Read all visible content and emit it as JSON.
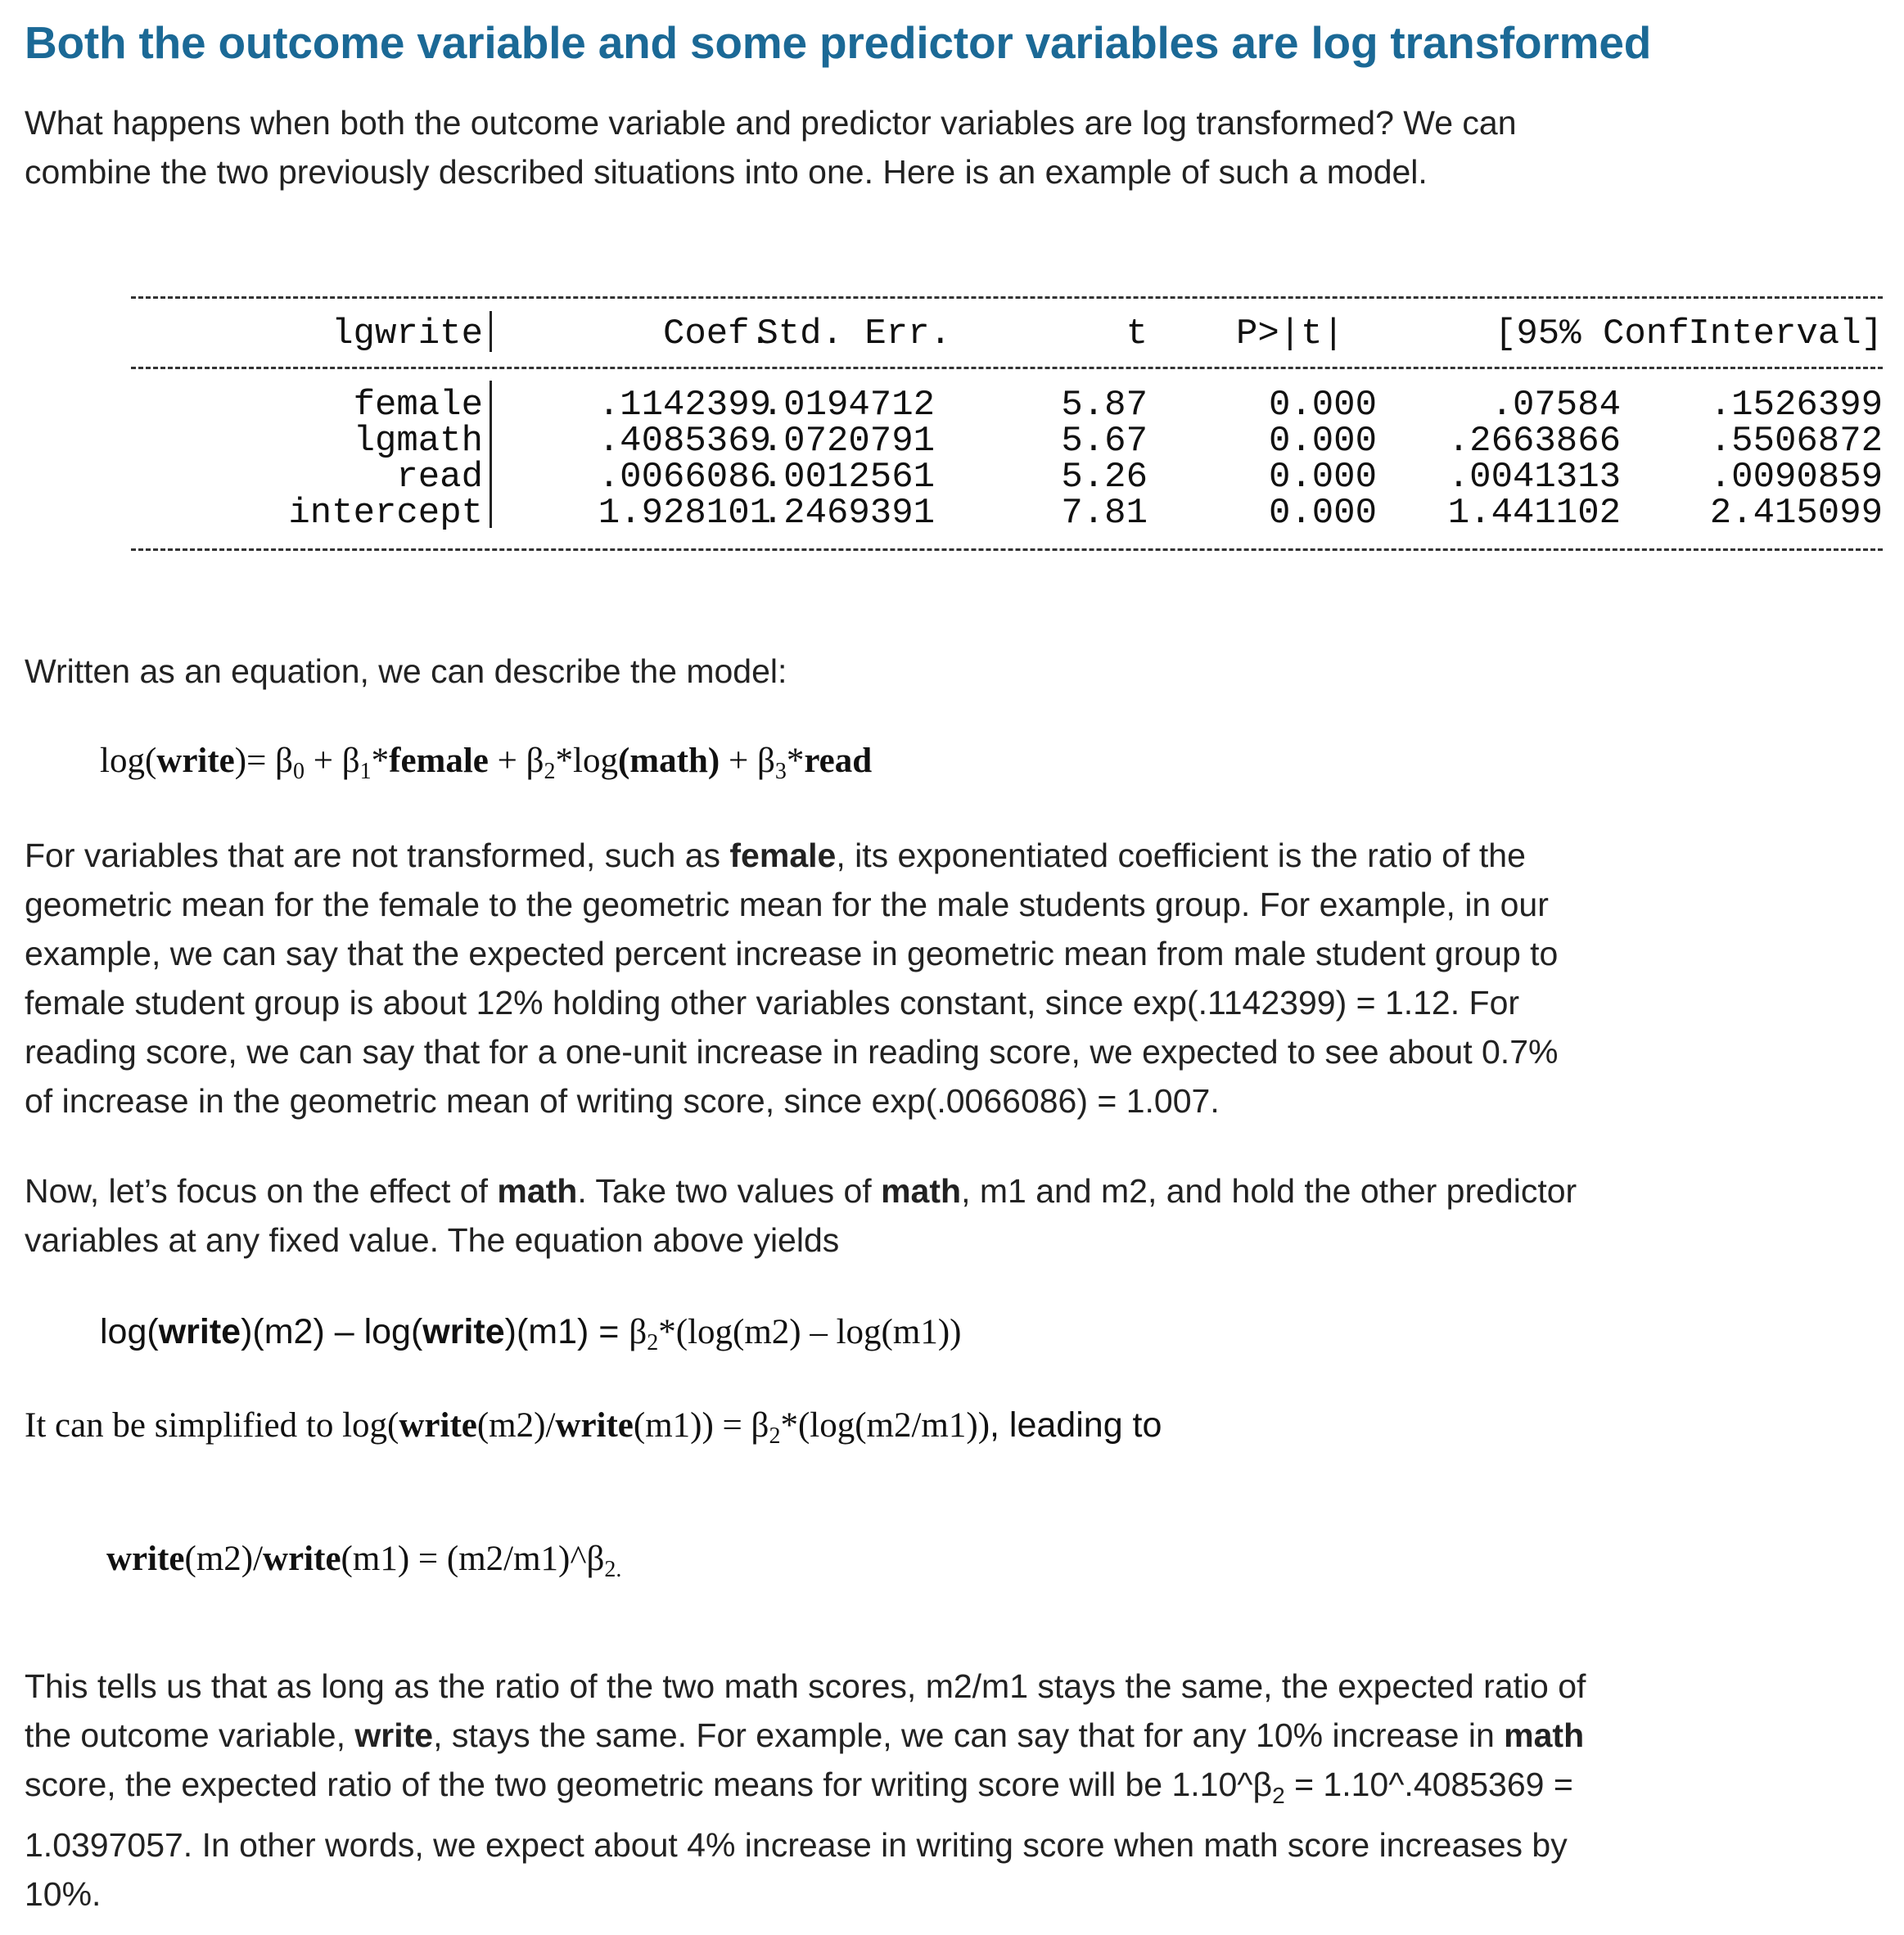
{
  "heading": "Both the outcome variable and some predictor variables are log transformed",
  "intro": [
    "What happens when both the outcome variable and predictor variables are log transformed? We can",
    "combine the two previously described situations into one. Here is an example of such a model."
  ],
  "regression_table": {
    "dep_var": "lgwrite",
    "columns": [
      "Coef.",
      "Std. Err.",
      "t",
      "P>|t|",
      "[95% Conf.",
      "Interval]"
    ],
    "rows": [
      {
        "name": "female",
        "coef": ".1142399",
        "se": ".0194712",
        "t": "5.87",
        "p": "0.000",
        "ci_low": ".07584",
        "ci_high": ".1526399"
      },
      {
        "name": "lgmath",
        "coef": ".4085369",
        "se": ".0720791",
        "t": "5.67",
        "p": "0.000",
        "ci_low": ".2663866",
        "ci_high": ".5506872"
      },
      {
        "name": "read",
        "coef": ".0066086",
        "se": ".0012561",
        "t": "5.26",
        "p": "0.000",
        "ci_low": ".0041313",
        "ci_high": ".0090859"
      },
      {
        "name": "intercept",
        "coef": "1.928101",
        "se": ".2469391",
        "t": "7.81",
        "p": "0.000",
        "ci_low": "1.441102",
        "ci_high": "2.415099"
      }
    ]
  },
  "equation_intro": "Written as an equation, we can describe the model:",
  "equation1": {
    "p1": "log(",
    "write": "write",
    "p2": ")= β",
    "s0": "0",
    "p3": " + β",
    "s1": "1",
    "p4": "*",
    "female": "female",
    "p5": " + β",
    "s2": "2",
    "p6": "*log",
    "math": "(math)",
    "p7": " + β",
    "s3": "3",
    "p8": "*",
    "read": "read"
  },
  "para_female": {
    "l1a": "For variables that are not transformed, such as ",
    "l1b": "female",
    "l1c": ", its exponentiated coefficient is the ratio of the",
    "l2": "geometric mean for the female to the geometric mean for the male students group. For example, in our",
    "l3": "example, we can say that the expected percent increase in geometric mean from male student group to",
    "l4": "female student group is about 12% holding other variables constant, since exp(.1142399) = 1.12. For",
    "l5": "reading score, we can say that for a one-unit increase in reading score, we expected to see about 0.7%",
    "l6": "of increase in the geometric mean of writing score, since exp(.0066086) = 1.007."
  },
  "para_math": {
    "l1a": "Now, let’s focus on the effect of ",
    "l1b": "math",
    "l1c": ". Take two values of ",
    "l1d": "math",
    "l1e": ", m1 and m2, and hold the other predictor",
    "l2": "variables at any fixed value. The equation above yields"
  },
  "equation2": {
    "a": "log(",
    "w1": "write",
    "b": ")(m2) – log(",
    "w2": "write",
    "c": ")(m1) = ",
    "d": "β",
    "s": "2",
    "e": "*(log(m2) – log(m1))"
  },
  "simplified": {
    "a": "It can be simplified to log(",
    "w1": "write",
    "b": "(m2)/",
    "w2": "write",
    "c": "(m1)) = β",
    "s": "2",
    "d": "*(log(m2/m1))",
    "e": ", leading to"
  },
  "equation3": {
    "w1": "write",
    "a": "(m2)/",
    "w2": "write",
    "b": "(m1) = (m2/m1)^β",
    "s": "2."
  },
  "para_final": {
    "l1": "This tells us that as long as the ratio of the two math scores, m2/m1 stays the same, the expected ratio of",
    "l2a": "the outcome variable, ",
    "l2b": "write",
    "l2c": ", stays the same. For example, we can say that for any 10% increase in ",
    "l2d": "math",
    "l3a": "score, the expected ratio of the two geometric means for writing score will be 1.10^β",
    "l3s": "2",
    "l3b": " = 1.10^.4085369 =",
    "l4": "1.0397057. In other words, we expect about 4% increase in writing score when math score increases by",
    "l5": "10%."
  }
}
